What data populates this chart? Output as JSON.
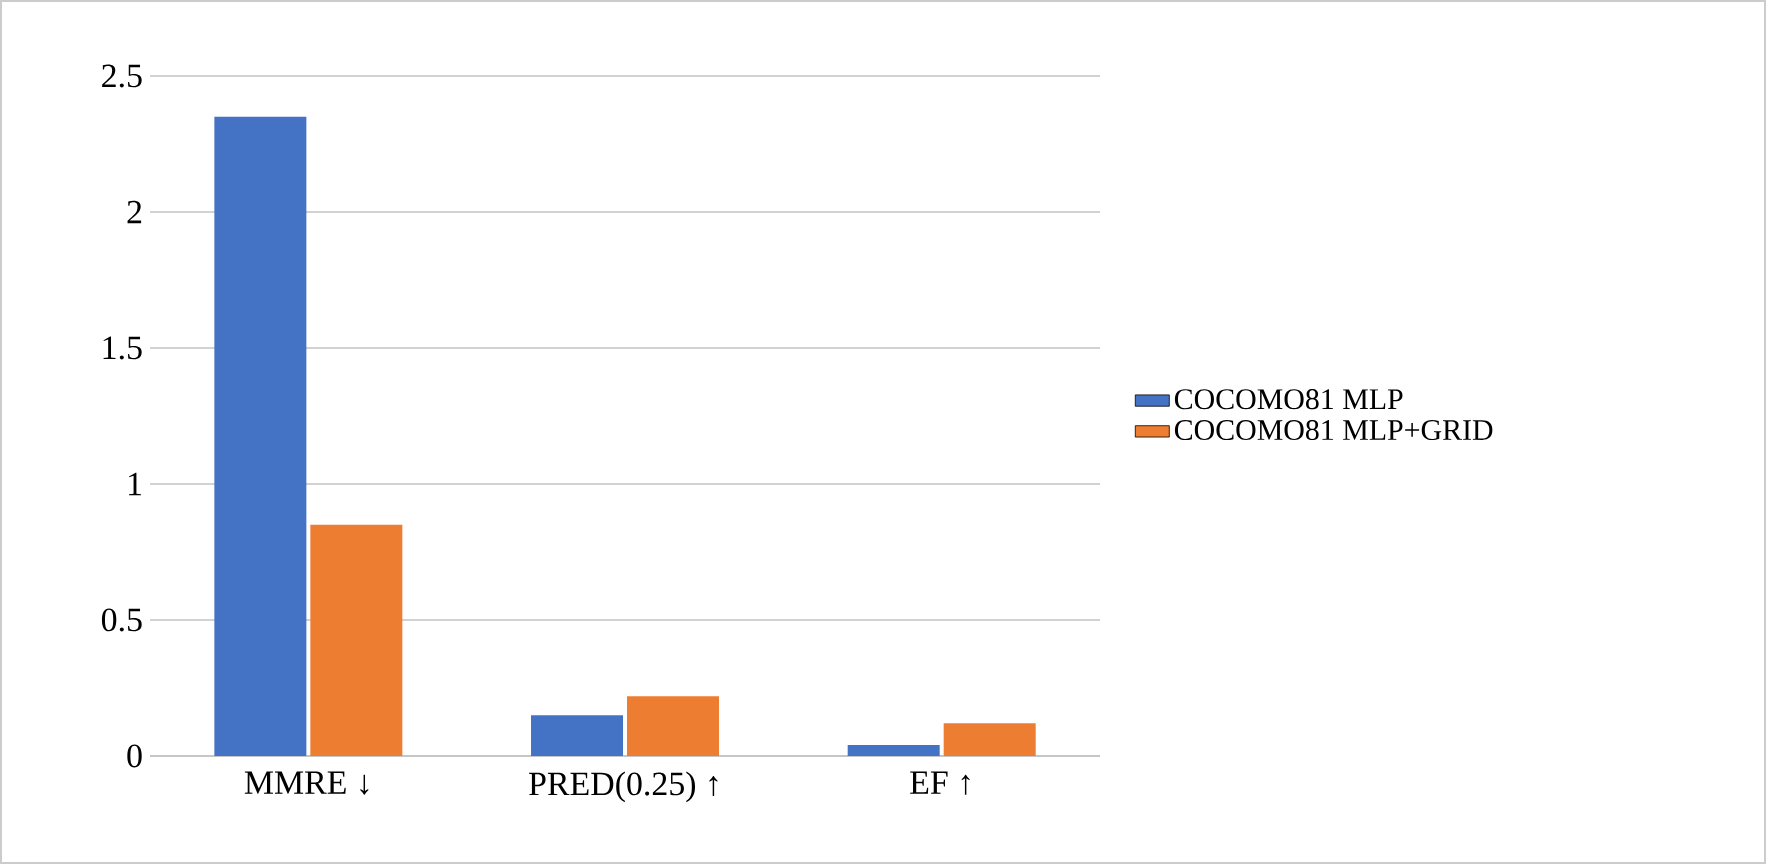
{
  "chart_data": {
    "type": "bar",
    "categories": [
      "MMRE ↓",
      "PRED(0.25) ↑",
      "EF ↑"
    ],
    "series": [
      {
        "name": "COCOMO81 MLP",
        "color": "#4472c4",
        "values": [
          2.35,
          0.15,
          0.04
        ]
      },
      {
        "name": "COCOMO81 MLP+GRID",
        "color": "#ed7d31",
        "values": [
          0.85,
          0.22,
          0.12
        ]
      }
    ],
    "ylim": [
      0,
      2.5
    ],
    "yticks": [
      0,
      0.5,
      1,
      1.5,
      2,
      2.5
    ],
    "grid": "y",
    "legend": "right"
  }
}
